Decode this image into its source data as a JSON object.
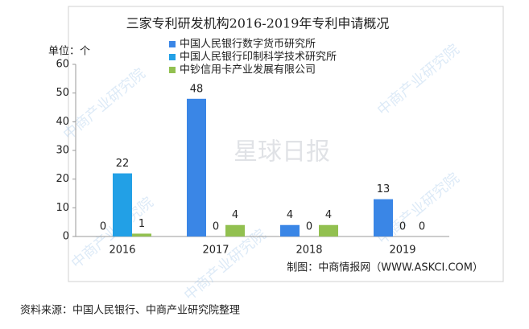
{
  "chart_data": {
    "type": "bar",
    "title": "三家专利研发机构2016-2019年专利申请概况",
    "y_axis_label": "单位：个",
    "categories": [
      "2016",
      "2017",
      "2018",
      "2019"
    ],
    "series": [
      {
        "name": "中国人民银行数字货币研究所",
        "color": "#3a86e6",
        "values": [
          0,
          48,
          4,
          13
        ]
      },
      {
        "name": "中国人民银行印制科学技术研究所",
        "color": "#22a0e6",
        "values": [
          22,
          0,
          0,
          0
        ]
      },
      {
        "name": "中钞信用卡产业发展有限公司",
        "color": "#92c050",
        "values": [
          1,
          4,
          4,
          0
        ]
      }
    ],
    "ylim": [
      0,
      60
    ],
    "yticks": [
      0,
      10,
      20,
      30,
      40,
      50,
      60
    ],
    "grid": false,
    "credit": "制图：中商情报网（WWW.ASKCI.COM）",
    "watermarks": [
      "中商产业研究院",
      "星球日报"
    ]
  },
  "caption": "资料来源：中国人民银行、中商产业研究院整理"
}
